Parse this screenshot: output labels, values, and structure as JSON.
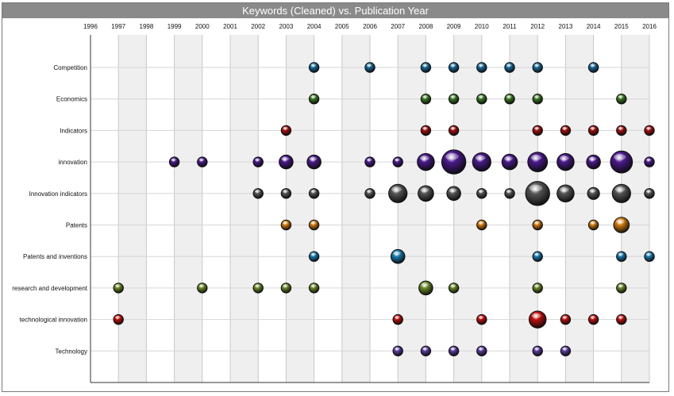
{
  "chart_data": {
    "type": "scatter",
    "title": "Keywords (Cleaned) vs. Publication Year",
    "xlabel": "",
    "ylabel": "",
    "x": [
      1996,
      1997,
      1998,
      1999,
      2000,
      2001,
      2002,
      2003,
      2004,
      2005,
      2006,
      2007,
      2008,
      2009,
      2010,
      2011,
      2012,
      2013,
      2014,
      2015,
      2016
    ],
    "categories": [
      "Competition",
      "Economics",
      "Indicators",
      "innovation",
      "Innovation indicators",
      "Patents",
      "Patents and inventions",
      "research and development",
      "technological innovation",
      "Technology"
    ],
    "grid": true,
    "colors": {
      "Competition": "#1a6a9a",
      "Economics": "#3a7a26",
      "Indicators": "#a01010",
      "innovation": "#4a1a8a",
      "Innovation indicators": "#555555",
      "Patents": "#d07a10",
      "Patents and inventions": "#1a7ab0",
      "research and development": "#6a8a2a",
      "technological innovation": "#c01010",
      "Technology": "#5a3aa0"
    },
    "series": [
      {
        "name": "Competition",
        "points": [
          [
            2004,
            1
          ],
          [
            2006,
            1
          ],
          [
            2008,
            1
          ],
          [
            2009,
            1
          ],
          [
            2010,
            1
          ],
          [
            2011,
            1
          ],
          [
            2012,
            1
          ],
          [
            2014,
            1
          ]
        ]
      },
      {
        "name": "Economics",
        "points": [
          [
            2004,
            1
          ],
          [
            2008,
            1
          ],
          [
            2009,
            1
          ],
          [
            2010,
            1
          ],
          [
            2011,
            1
          ],
          [
            2012,
            1
          ],
          [
            2015,
            1
          ]
        ]
      },
      {
        "name": "Indicators",
        "points": [
          [
            2003,
            1
          ],
          [
            2008,
            1
          ],
          [
            2009,
            1
          ],
          [
            2012,
            1
          ],
          [
            2013,
            1
          ],
          [
            2014,
            1
          ],
          [
            2015,
            1
          ],
          [
            2016,
            1
          ]
        ]
      },
      {
        "name": "innovation",
        "points": [
          [
            1999,
            1
          ],
          [
            2000,
            1
          ],
          [
            2002,
            1
          ],
          [
            2003,
            2
          ],
          [
            2004,
            2
          ],
          [
            2006,
            1
          ],
          [
            2007,
            1
          ],
          [
            2008,
            3
          ],
          [
            2009,
            6
          ],
          [
            2010,
            3.5
          ],
          [
            2011,
            2.5
          ],
          [
            2012,
            4
          ],
          [
            2013,
            3
          ],
          [
            2014,
            2
          ],
          [
            2015,
            5
          ],
          [
            2016,
            1
          ]
        ]
      },
      {
        "name": "Innovation indicators",
        "points": [
          [
            2002,
            1
          ],
          [
            2003,
            1
          ],
          [
            2004,
            1
          ],
          [
            2006,
            1
          ],
          [
            2007,
            3.5
          ],
          [
            2008,
            2.5
          ],
          [
            2009,
            2
          ],
          [
            2010,
            1
          ],
          [
            2011,
            1
          ],
          [
            2012,
            6
          ],
          [
            2013,
            3
          ],
          [
            2014,
            1.5
          ],
          [
            2015,
            3.5
          ],
          [
            2016,
            1
          ]
        ]
      },
      {
        "name": "Patents",
        "points": [
          [
            2003,
            1
          ],
          [
            2004,
            1
          ],
          [
            2010,
            1
          ],
          [
            2012,
            1
          ],
          [
            2014,
            1
          ],
          [
            2015,
            2.5
          ]
        ]
      },
      {
        "name": "Patents and inventions",
        "points": [
          [
            2004,
            1
          ],
          [
            2007,
            2
          ],
          [
            2012,
            1
          ],
          [
            2015,
            1
          ],
          [
            2016,
            1
          ]
        ]
      },
      {
        "name": "research and development",
        "points": [
          [
            1997,
            1
          ],
          [
            2000,
            1
          ],
          [
            2002,
            1
          ],
          [
            2003,
            1
          ],
          [
            2004,
            1
          ],
          [
            2008,
            2
          ],
          [
            2009,
            1
          ],
          [
            2012,
            1
          ],
          [
            2015,
            1
          ]
        ]
      },
      {
        "name": "technological innovation",
        "points": [
          [
            1997,
            1
          ],
          [
            2007,
            1
          ],
          [
            2010,
            1
          ],
          [
            2012,
            3
          ],
          [
            2013,
            1
          ],
          [
            2014,
            1
          ],
          [
            2015,
            1
          ]
        ]
      },
      {
        "name": "Technology",
        "points": [
          [
            2007,
            1
          ],
          [
            2008,
            1
          ],
          [
            2009,
            1
          ],
          [
            2010,
            1
          ],
          [
            2012,
            1
          ],
          [
            2013,
            1
          ]
        ]
      }
    ]
  }
}
